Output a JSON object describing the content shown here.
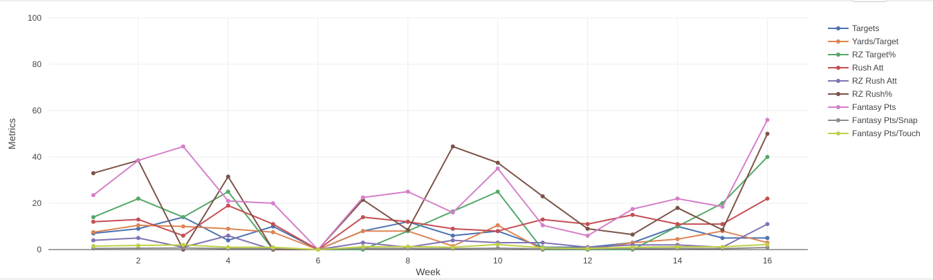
{
  "chart_data": {
    "type": "line",
    "title": "",
    "xlabel": "Week",
    "ylabel": "Metrics",
    "xlim": [
      0.0,
      16.9
    ],
    "ylim": [
      0,
      100
    ],
    "xticks": [
      2,
      4,
      6,
      8,
      10,
      12,
      14,
      16
    ],
    "yticks": [
      0,
      20,
      40,
      60,
      80,
      100
    ],
    "grid": true,
    "legend_position": "top-right",
    "x": [
      1,
      2,
      3,
      4,
      5,
      6,
      7,
      8,
      9,
      10,
      11,
      12,
      13,
      14,
      15,
      16
    ],
    "series": [
      {
        "name": "Targets",
        "color": "#4c72b0",
        "values": [
          7,
          9,
          14,
          4,
          10,
          0,
          8,
          12,
          6,
          8,
          1,
          1,
          3,
          10,
          5,
          5
        ]
      },
      {
        "name": "Yards/Target",
        "color": "#dd8452",
        "values": [
          7.5,
          10.5,
          10,
          9,
          7.5,
          0,
          8,
          8,
          1.5,
          10.5,
          0,
          0,
          3,
          4.5,
          8,
          3
        ]
      },
      {
        "name": "RZ Target%",
        "color": "#55a868",
        "values": [
          14,
          22,
          14,
          25,
          0,
          0,
          0,
          8,
          16.5,
          25,
          0,
          0,
          0,
          10,
          20,
          40
        ]
      },
      {
        "name": "Rush Att",
        "color": "#c44e52",
        "values": [
          12,
          13,
          6,
          19,
          11,
          0,
          14,
          12,
          9,
          8,
          13,
          11,
          15,
          11,
          11,
          22
        ]
      },
      {
        "name": "RZ Rush Att",
        "color": "#8172b3",
        "values": [
          4,
          5,
          1,
          6,
          0,
          0,
          3,
          1,
          4,
          3,
          3,
          1,
          2,
          2,
          1,
          11
        ]
      },
      {
        "name": "RZ Rush%",
        "color": "#7b5247",
        "values": [
          33,
          38.5,
          0,
          31.5,
          0,
          0,
          21.5,
          8.5,
          44.5,
          37.5,
          23,
          9,
          6.5,
          18,
          8.5,
          50
        ]
      },
      {
        "name": "Fantasy Pts",
        "color": "#d47fc8",
        "values": [
          23.5,
          38.5,
          44.5,
          21,
          20,
          0,
          22.5,
          25,
          16,
          35,
          10.5,
          6,
          17.5,
          22,
          18.5,
          56
        ]
      },
      {
        "name": "Fantasy Pts/Snap",
        "color": "#8c8c8c",
        "values": [
          0.5,
          0.6,
          0.7,
          0.4,
          0.4,
          0,
          0.5,
          0.5,
          0.4,
          0.6,
          0.3,
          0.2,
          0.4,
          0.5,
          0.4,
          0.9
        ]
      },
      {
        "name": "Fantasy Pts/Touch",
        "color": "#bfcf45",
        "values": [
          1.5,
          1.8,
          2.0,
          1.0,
          1.0,
          0,
          1.2,
          1.3,
          1.0,
          2.2,
          0.8,
          0.5,
          1.0,
          1.2,
          1.2,
          2.2
        ]
      }
    ]
  }
}
